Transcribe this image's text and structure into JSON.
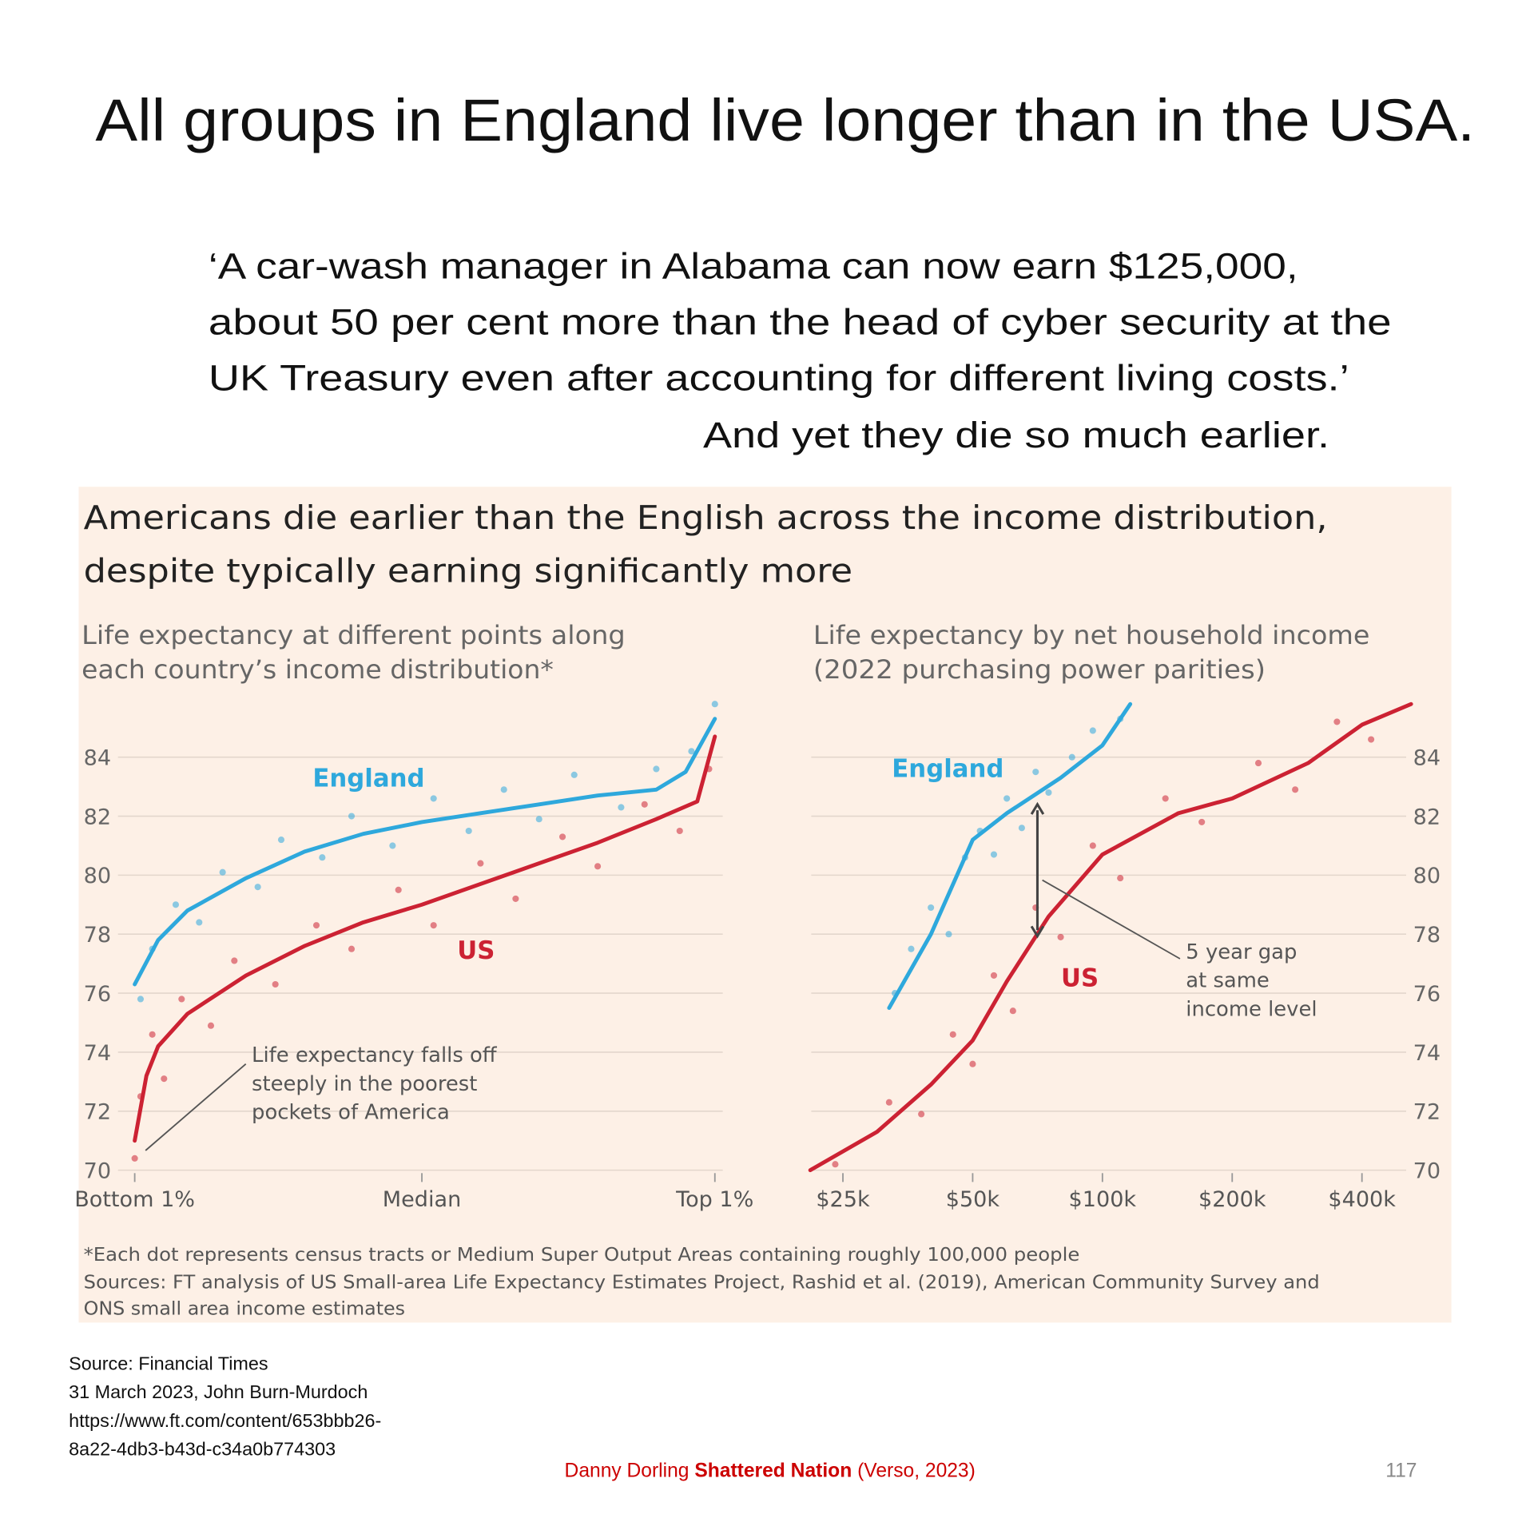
{
  "slide": {
    "title": "All groups in England live longer than in the USA.",
    "quote": [
      "‘A car-wash manager in Alabama can now earn $125,000,",
      "about 50 per cent more than the head of cyber security at the",
      "UK Treasury even after accounting for different living costs.’",
      "And yet they die so much earlier."
    ],
    "source": [
      "Source: Financial Times",
      "31 March 2023, John Burn-Murdoch",
      "https://www.ft.com/content/653bbb26-",
      "8a22-4db3-b43d-c34a0b774303"
    ],
    "credit": {
      "author": "Danny Dorling",
      "book": "Shattered Nation",
      "publisher": "(Verso, 2023)"
    },
    "page_number": "117"
  },
  "figure": {
    "title": [
      "Americans die earlier than the English across the income distribution,",
      "despite typically earning significantly more"
    ],
    "footnote": [
      "*Each dot represents census tracts or Medium Super Output Areas containing roughly 100,000 people",
      "Sources: FT analysis of US Small-area Life Expectancy Estimates Project, Rashid et al. (2019), American Community Survey and",
      "ONS small area income estimates"
    ]
  },
  "chart_data": [
    {
      "type": "line",
      "subtitle": [
        "Life expectancy at different points along",
        "each country’s income distribution*"
      ],
      "xlim": [
        1,
        100
      ],
      "xticks": [
        {
          "value": 1,
          "label": "Bottom 1%"
        },
        {
          "value": 50,
          "label": "Median"
        },
        {
          "value": 100,
          "label": "Top 1%"
        }
      ],
      "ylim": [
        70,
        86
      ],
      "yticks": [
        70,
        72,
        74,
        76,
        78,
        80,
        82,
        84
      ],
      "grid": true,
      "ytick_side": "left",
      "series": [
        {
          "name": "England",
          "color": "#2ea8dc",
          "x": [
            1,
            5,
            10,
            20,
            30,
            40,
            50,
            60,
            70,
            80,
            90,
            95,
            100
          ],
          "values": [
            76.3,
            77.8,
            78.8,
            79.9,
            80.8,
            81.4,
            81.8,
            82.1,
            82.4,
            82.7,
            82.9,
            83.5,
            85.3
          ]
        },
        {
          "name": "US",
          "color": "#cc2233",
          "x": [
            1,
            3,
            5,
            10,
            20,
            30,
            40,
            50,
            60,
            70,
            80,
            90,
            97,
            100
          ],
          "values": [
            71,
            73.2,
            74.2,
            75.3,
            76.6,
            77.6,
            78.4,
            79,
            79.7,
            80.4,
            81.1,
            81.9,
            82.5,
            84.7
          ]
        }
      ],
      "dots": [
        {
          "color": "#2ea8dc",
          "x": [
            2,
            4,
            8,
            12,
            16,
            22,
            26,
            33,
            38,
            45,
            52,
            58,
            64,
            70,
            76,
            84,
            90,
            96,
            100
          ],
          "values": [
            75.8,
            77.5,
            79.0,
            78.4,
            80.1,
            79.6,
            81.2,
            80.6,
            82.0,
            81.0,
            82.6,
            81.5,
            82.9,
            81.9,
            83.4,
            82.3,
            83.6,
            84.2,
            85.8
          ]
        },
        {
          "color": "#cc2233",
          "x": [
            1,
            2,
            4,
            6,
            9,
            14,
            18,
            25,
            32,
            38,
            46,
            52,
            60,
            66,
            74,
            80,
            88,
            94,
            99
          ],
          "values": [
            70.4,
            72.5,
            74.6,
            73.1,
            75.8,
            74.9,
            77.1,
            76.3,
            78.3,
            77.5,
            79.5,
            78.3,
            80.4,
            79.2,
            81.3,
            80.3,
            82.4,
            81.5,
            83.6
          ]
        }
      ],
      "annotations": [
        [
          "Life expectancy falls off",
          "steeply in the poorest",
          "pockets of America"
        ]
      ]
    },
    {
      "type": "line",
      "subtitle": [
        "Life expectancy by net household income",
        "(2022 purchasing power parities)"
      ],
      "xlim": [
        21000,
        520000
      ],
      "log_x": true,
      "xticks": [
        {
          "value": 25000,
          "label": "$25k"
        },
        {
          "value": 50000,
          "label": "$50k"
        },
        {
          "value": 100000,
          "label": "$100k"
        },
        {
          "value": 200000,
          "label": "$200k"
        },
        {
          "value": 400000,
          "label": "$400k"
        }
      ],
      "ylim": [
        70,
        86
      ],
      "yticks": [
        70,
        72,
        74,
        76,
        78,
        80,
        82,
        84
      ],
      "grid": true,
      "ytick_side": "right",
      "series": [
        {
          "name": "England",
          "color": "#2ea8dc",
          "x": [
            32000,
            40000,
            50000,
            60000,
            80000,
            100000,
            116000
          ],
          "values": [
            75.5,
            78,
            81.2,
            82.1,
            83.3,
            84.4,
            85.8
          ]
        },
        {
          "name": "US",
          "color": "#cc2233",
          "x": [
            21000,
            30000,
            40000,
            50000,
            60000,
            75000,
            100000,
            150000,
            200000,
            300000,
            400000,
            520000
          ],
          "values": [
            70,
            71.3,
            72.9,
            74.4,
            76.4,
            78.6,
            80.7,
            82.1,
            82.6,
            83.8,
            85.1,
            85.8
          ]
        }
      ],
      "dots": [
        {
          "color": "#2ea8dc",
          "x": [
            33000,
            36000,
            40000,
            44000,
            48000,
            52000,
            56000,
            60000,
            65000,
            70000,
            75000,
            85000,
            95000,
            110000
          ],
          "values": [
            76.0,
            77.5,
            78.9,
            78.0,
            80.6,
            81.5,
            80.7,
            82.6,
            81.6,
            83.5,
            82.8,
            84.0,
            84.9,
            85.3
          ]
        },
        {
          "color": "#cc2233",
          "x": [
            24000,
            32000,
            38000,
            45000,
            50000,
            56000,
            62000,
            70000,
            80000,
            95000,
            110000,
            140000,
            170000,
            230000,
            280000,
            350000,
            420000
          ],
          "values": [
            70.2,
            72.3,
            71.9,
            74.6,
            73.6,
            76.6,
            75.4,
            78.9,
            77.9,
            81.0,
            79.9,
            82.6,
            81.8,
            83.8,
            82.9,
            85.2,
            84.6
          ]
        }
      ],
      "annotations": [
        [
          "5 year gap",
          "at same",
          "income level"
        ]
      ]
    }
  ]
}
